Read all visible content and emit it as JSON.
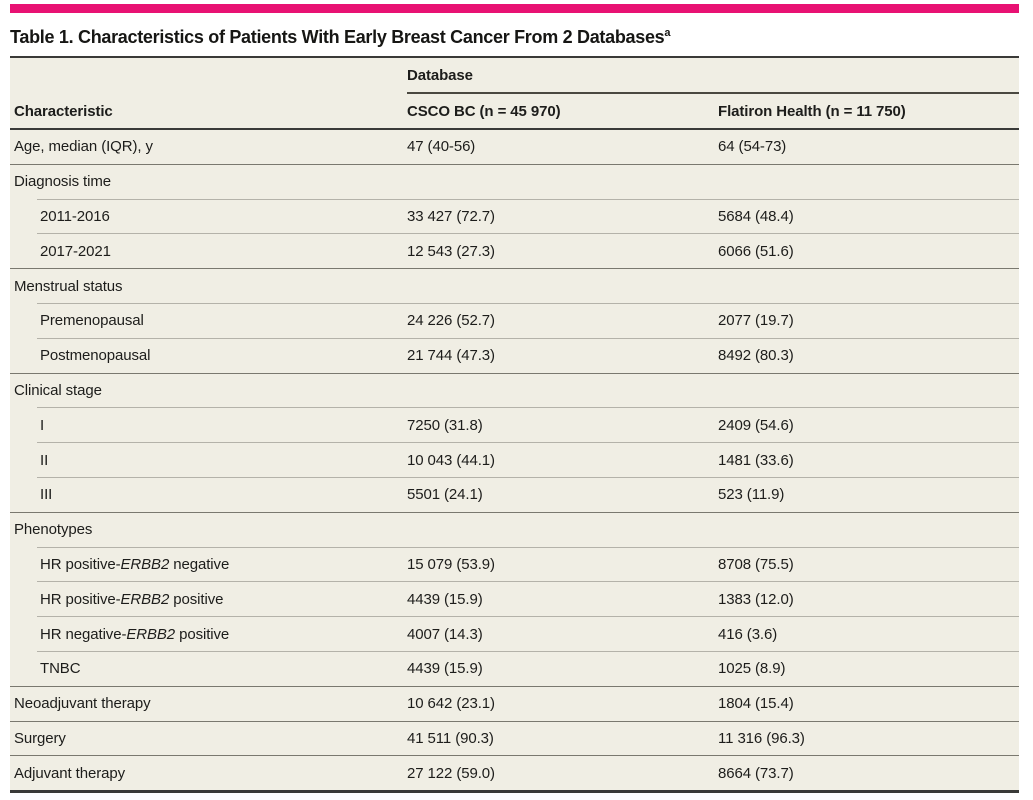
{
  "title": {
    "text": "Table 1. Characteristics of Patients With Early Breast Cancer From 2 Databases",
    "superscript": "a"
  },
  "header": {
    "characteristic": "Characteristic",
    "group": "Database",
    "csco": "CSCO BC (n = 45 970)",
    "flatiron": "Flatiron Health (n = 11 750)"
  },
  "rows": [
    {
      "label": "Age, median (IQR), y",
      "csco": "47 (40-56)",
      "flatiron": "64 (54-73)"
    },
    {
      "label": "Diagnosis time",
      "section": true
    },
    {
      "label": "2011-2016",
      "indent": true,
      "csco": "33 427 (72.7)",
      "flatiron": "5684 (48.4)"
    },
    {
      "label": "2017-2021",
      "indent": true,
      "csco": "12 543 (27.3)",
      "flatiron": "6066 (51.6)"
    },
    {
      "label": "Menstrual status",
      "section": true
    },
    {
      "label": "Premenopausal",
      "indent": true,
      "csco": "24 226 (52.7)",
      "flatiron": "2077 (19.7)"
    },
    {
      "label": "Postmenopausal",
      "indent": true,
      "csco": "21 744 (47.3)",
      "flatiron": "8492 (80.3)"
    },
    {
      "label": "Clinical stage",
      "section": true
    },
    {
      "label": "I",
      "indent": true,
      "csco": "7250 (31.8)",
      "flatiron": "2409 (54.6)"
    },
    {
      "label": "II",
      "indent": true,
      "csco": "10 043 (44.1)",
      "flatiron": "1481 (33.6)"
    },
    {
      "label": "III",
      "indent": true,
      "csco": "5501 (24.1)",
      "flatiron": "523 (11.9)"
    },
    {
      "label": "Phenotypes",
      "section": true
    },
    {
      "label_parts": [
        {
          "text": "HR positive-"
        },
        {
          "text": "ERBB2",
          "italic": true
        },
        {
          "text": " negative"
        }
      ],
      "indent": true,
      "csco": "15 079 (53.9)",
      "flatiron": "8708 (75.5)"
    },
    {
      "label_parts": [
        {
          "text": "HR positive-"
        },
        {
          "text": "ERBB2",
          "italic": true
        },
        {
          "text": " positive"
        }
      ],
      "indent": true,
      "csco": "4439 (15.9)",
      "flatiron": "1383 (12.0)"
    },
    {
      "label_parts": [
        {
          "text": "HR negative-"
        },
        {
          "text": "ERBB2",
          "italic": true
        },
        {
          "text": " positive"
        }
      ],
      "indent": true,
      "csco": "4007 (14.3)",
      "flatiron": "416 (3.6)"
    },
    {
      "label": "TNBC",
      "indent": true,
      "csco": "4439 (15.9)",
      "flatiron": "1025 (8.9)"
    },
    {
      "label": "Neoadjuvant therapy",
      "csco": "10 642 (23.1)",
      "flatiron": "1804 (15.4)"
    },
    {
      "label": "Surgery",
      "csco": "41 511 (90.3)",
      "flatiron": "11 316 (96.3)"
    },
    {
      "label": "Adjuvant therapy",
      "csco": "27 122 (59.0)",
      "flatiron": "8664 (73.7)"
    }
  ],
  "colors": {
    "accent": "#e81173",
    "table_bg": "#f0eee4",
    "text": "#1d1d1b",
    "rule_dark": "#3a3a38",
    "rule_medium": "#7a786f",
    "rule_light": "#b4b2a9"
  }
}
